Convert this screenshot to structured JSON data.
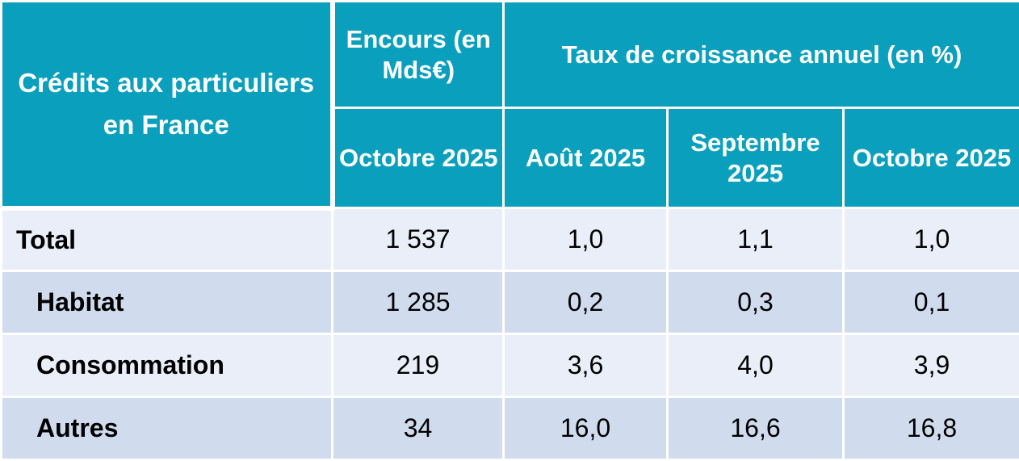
{
  "header": {
    "corner": "Crédits aux particuliers en France",
    "encours_group": "Encours (en Mds€)",
    "growth_group": "Taux de croissance annuel (en %)",
    "columns": [
      "Octobre 2025",
      "Août 2025",
      "Septembre 2025",
      "Octobre 2025"
    ]
  },
  "rows": [
    {
      "label": "Total",
      "values": [
        "1 537",
        "1,0",
        "1,1",
        "1,0"
      ]
    },
    {
      "label": "Habitat",
      "values": [
        "1 285",
        "0,2",
        "0,3",
        "0,1"
      ]
    },
    {
      "label": "Consommation",
      "values": [
        "219",
        "3,6",
        "4,0",
        "3,9"
      ]
    },
    {
      "label": "Autres",
      "values": [
        "34",
        "16,0",
        "16,6",
        "16,8"
      ]
    }
  ],
  "colors": {
    "header_bg": "#0aa0bd",
    "header_text": "#ffffff",
    "row_light": "#e9eef8",
    "row_dark": "#d0dcee"
  }
}
